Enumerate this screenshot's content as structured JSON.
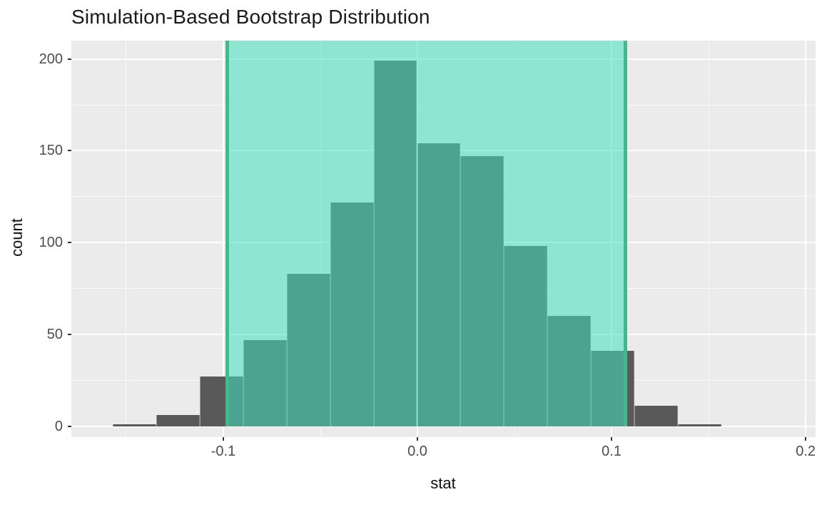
{
  "chart_data": {
    "type": "bar",
    "subtype": "histogram",
    "title": "Simulation-Based Bootstrap Distribution",
    "xlabel": "stat",
    "ylabel": "count",
    "xlim": [
      -0.1783,
      0.2051
    ],
    "ylim": [
      -6,
      210
    ],
    "x_ticks": [
      -0.1,
      0.0,
      0.1,
      0.2
    ],
    "x_tick_labels": [
      "-0.1",
      "0.0",
      "0.1",
      "0.2"
    ],
    "x_minor": [
      -0.15,
      -0.05,
      0.05,
      0.15
    ],
    "y_ticks": [
      0,
      50,
      100,
      150,
      200
    ],
    "y_tick_labels": [
      "0",
      "50",
      "100",
      "150",
      "200"
    ],
    "y_minor": [
      25,
      75,
      125,
      175
    ],
    "grid": true,
    "legend": false,
    "histogram": {
      "bin_start": -0.157,
      "bin_width": 0.0224,
      "counts": [
        1,
        6,
        27,
        47,
        83,
        122,
        199,
        154,
        147,
        98,
        60,
        41,
        11,
        1
      ]
    },
    "confidence_interval": {
      "lower": -0.098,
      "upper": 0.107
    },
    "colors": {
      "panel_background": "#EBEBEB",
      "gridline": "#FFFFFF",
      "bar_fill": "#595959",
      "shade_fill": "#40E0BE",
      "shade_alpha": 0.55,
      "ci_line": "#44B98A",
      "tick_label": "#4D4D4D",
      "axis_title": "#111111",
      "title": "#1A1A1A"
    }
  }
}
